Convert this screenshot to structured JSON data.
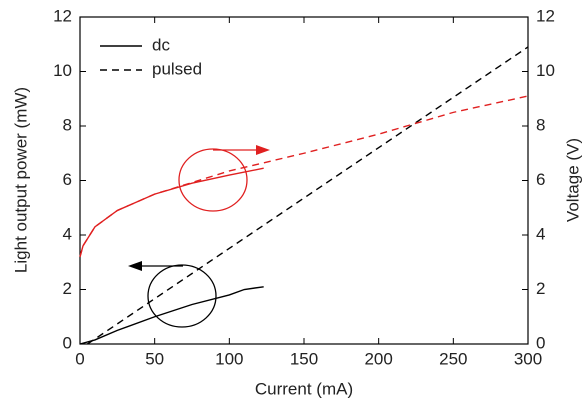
{
  "chart_data": {
    "type": "line",
    "x_label": "Current (mA)",
    "y_label": "Light output power (mW)",
    "y2_label": "Voltage (V)",
    "xlim": [
      0,
      300
    ],
    "xticks": [
      0,
      50,
      100,
      150,
      200,
      250,
      300
    ],
    "ylim": [
      0,
      12
    ],
    "yticks": [
      0,
      2,
      4,
      6,
      8,
      10,
      12
    ],
    "y2lim": [
      0,
      12
    ],
    "y2ticks": [
      0,
      2,
      4,
      6,
      8,
      10,
      12
    ],
    "grid": false,
    "legend": {
      "corner": "upper-left",
      "entries": [
        {
          "name": "dc",
          "line_style": "solid"
        },
        {
          "name": "pulsed",
          "line_style": "dashed"
        }
      ]
    },
    "series": [
      {
        "color": "#000000",
        "line_style": "solid",
        "axis": "y",
        "x": [
          0,
          10,
          25,
          50,
          75,
          100,
          110,
          123
        ],
        "values": [
          0,
          0.15,
          0.5,
          1.0,
          1.45,
          1.8,
          2.0,
          2.1
        ]
      },
      {
        "color": "#000000",
        "line_style": "dashed",
        "axis": "y",
        "x": [
          5,
          300
        ],
        "values": [
          0,
          10.9
        ]
      },
      {
        "color": "#e02020",
        "line_style": "solid",
        "axis": "y2",
        "x": [
          0,
          2,
          10,
          25,
          50,
          75,
          100,
          123
        ],
        "values": [
          3.2,
          3.6,
          4.3,
          4.9,
          5.5,
          5.9,
          6.2,
          6.45
        ]
      },
      {
        "color": "#e02020",
        "line_style": "dashed",
        "axis": "y2",
        "x": [
          0,
          2,
          10,
          25,
          50,
          100,
          150,
          200,
          250,
          300
        ],
        "values": [
          3.2,
          3.6,
          4.3,
          4.9,
          5.5,
          6.35,
          7.0,
          7.7,
          8.5,
          9.1
        ]
      }
    ]
  }
}
